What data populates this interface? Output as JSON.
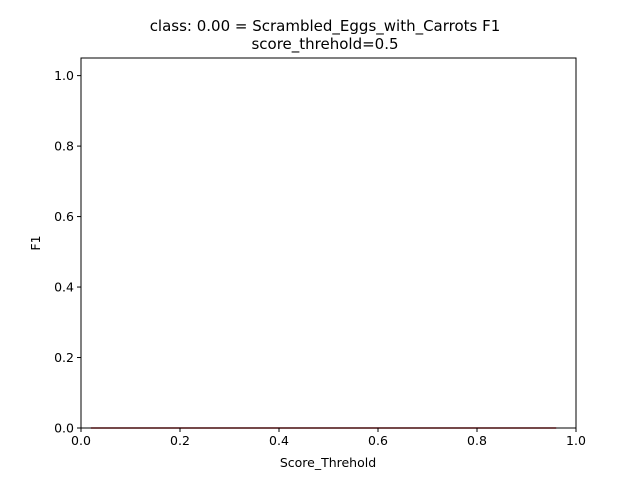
{
  "chart_data": {
    "type": "line",
    "title_lines": [
      "class: 0.00 = Scrambled_Eggs_with_Carrots F1",
      "score_threhold=0.5"
    ],
    "xlabel": "Score_Threhold",
    "ylabel": "F1",
    "xlim": [
      0.0,
      1.0
    ],
    "ylim": [
      0.0,
      1.05
    ],
    "xticks": [
      "0.0",
      "0.2",
      "0.4",
      "0.6",
      "0.8",
      "1.0"
    ],
    "yticks": [
      "0.0",
      "0.2",
      "0.4",
      "0.6",
      "0.8",
      "1.0"
    ],
    "grid": false,
    "series": [
      {
        "color": "#d62728",
        "x": [
          0.02,
          0.96
        ],
        "y": [
          0.0,
          0.0
        ]
      }
    ]
  }
}
